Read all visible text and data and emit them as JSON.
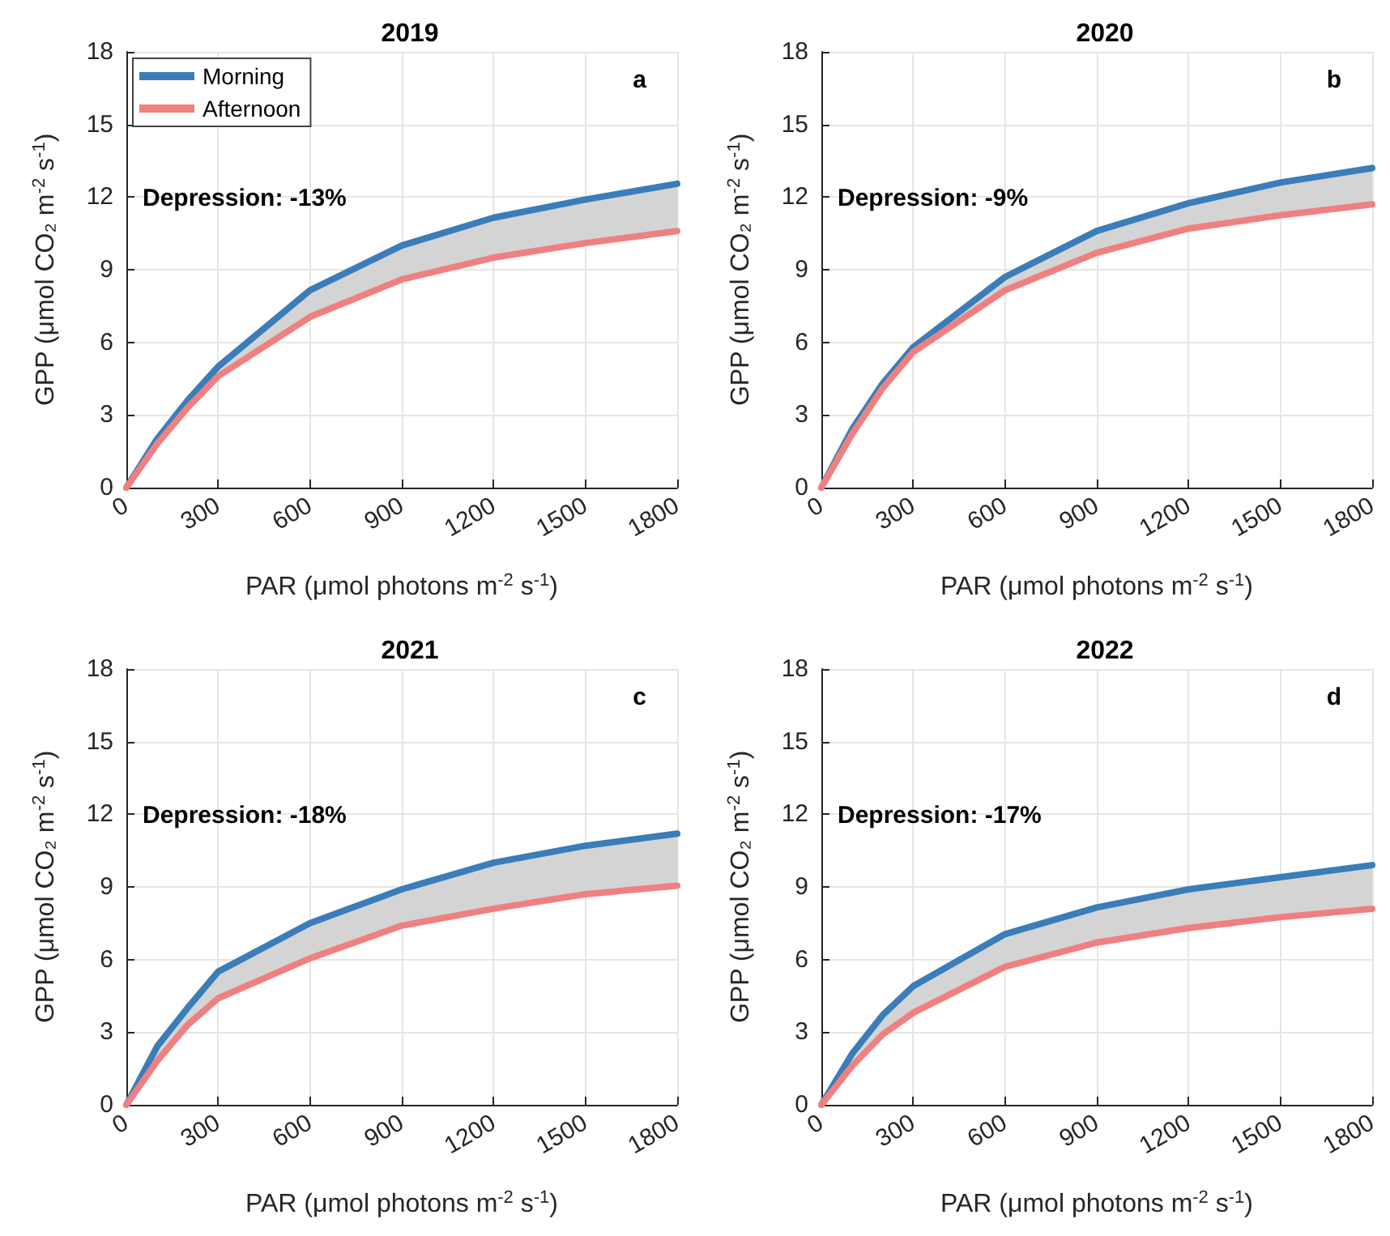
{
  "chart_data": [
    {
      "type": "line",
      "title": "2019",
      "xlabel": "PAR (μmol photons m$^{-2}$ s$^{-1}$)",
      "ylabel": "GPP (μmol CO₂ m$^{-2}$ s$^{-1}$)",
      "annotations": [
        "a",
        "Depression: -13%"
      ],
      "x": [
        0,
        100,
        200,
        300,
        600,
        900,
        1200,
        1500,
        1800
      ],
      "series": [
        {
          "name": "Morning",
          "color": "#3a7db8",
          "values": [
            0,
            2.0,
            3.6,
            5.0,
            8.15,
            10.0,
            11.15,
            11.9,
            12.55
          ],
          "lower": [
            0,
            1.8,
            3.3,
            4.6,
            7.05,
            8.6,
            9.5,
            10.1,
            10.6
          ],
          "upper": [
            0,
            2.0,
            3.6,
            5.0,
            8.15,
            10.0,
            11.15,
            11.9,
            12.55
          ]
        },
        {
          "name": "Afternoon",
          "color": "#f08080",
          "values": [
            0,
            1.8,
            3.3,
            4.6,
            7.05,
            8.6,
            9.5,
            10.1,
            10.6
          ]
        }
      ],
      "xlim": [
        0,
        1800
      ],
      "xticks": [
        0,
        300,
        600,
        900,
        1200,
        1500,
        1800
      ],
      "ylim": [
        0,
        18
      ],
      "yticks": [
        0,
        3,
        6,
        9,
        12,
        15,
        18
      ],
      "grid": true,
      "legend": "top left",
      "line_style": "solid",
      "marker": "none"
    },
    {
      "type": "line",
      "title": "2020",
      "xlabel": "PAR (μmol photons m$^{-2}$ s$^{-1}$)",
      "ylabel": "GPP (μmol CO₂ m$^{-2}$ s$^{-1}$)",
      "annotations": [
        "b",
        "Depression: -9%"
      ],
      "x": [
        0,
        100,
        200,
        300,
        600,
        900,
        1200,
        1500,
        1800
      ],
      "series": [
        {
          "color": "#3a7db8",
          "values": [
            0,
            2.4,
            4.3,
            5.8,
            8.7,
            10.6,
            11.75,
            12.6,
            13.2
          ],
          "lower": [
            0,
            2.2,
            4.1,
            5.6,
            8.15,
            9.7,
            10.7,
            11.25,
            11.7
          ],
          "upper": [
            0,
            2.4,
            4.3,
            5.8,
            8.7,
            10.6,
            11.75,
            12.6,
            13.2
          ]
        },
        {
          "color": "#f08080",
          "values": [
            0,
            2.2,
            4.1,
            5.6,
            8.15,
            9.7,
            10.7,
            11.25,
            11.7
          ]
        }
      ],
      "xlim": [
        0,
        1800
      ],
      "xticks": [
        0,
        300,
        600,
        900,
        1200,
        1500,
        1800
      ],
      "ylim": [
        0,
        18
      ],
      "yticks": [
        0,
        3,
        6,
        9,
        12,
        15,
        18
      ],
      "grid": true,
      "line_style": "solid",
      "marker": "none"
    },
    {
      "type": "line",
      "title": "2021",
      "xlabel": "PAR (μmol photons m$^{-2}$ s$^{-1}$)",
      "ylabel": "GPP (μmol CO₂ m$^{-2}$ s$^{-1}$)",
      "annotations": [
        "c",
        "Depression: -18%"
      ],
      "x": [
        0,
        100,
        200,
        300,
        600,
        900,
        1200,
        1500,
        1800
      ],
      "series": [
        {
          "color": "#3a7db8",
          "values": [
            0,
            2.4,
            4.0,
            5.5,
            7.5,
            8.9,
            10.0,
            10.7,
            11.2
          ],
          "lower": [
            0,
            1.8,
            3.3,
            4.4,
            6.05,
            7.4,
            8.1,
            8.7,
            9.05
          ],
          "upper": [
            0,
            2.4,
            4.0,
            5.5,
            7.5,
            8.9,
            10.0,
            10.7,
            11.2
          ]
        },
        {
          "color": "#f08080",
          "values": [
            0,
            1.8,
            3.3,
            4.4,
            6.05,
            7.4,
            8.1,
            8.7,
            9.05
          ]
        }
      ],
      "xlim": [
        0,
        1800
      ],
      "xticks": [
        0,
        300,
        600,
        900,
        1200,
        1500,
        1800
      ],
      "ylim": [
        0,
        18
      ],
      "yticks": [
        0,
        3,
        6,
        9,
        12,
        15,
        18
      ],
      "grid": true,
      "line_style": "solid",
      "marker": "none"
    },
    {
      "type": "line",
      "title": "2022",
      "xlabel": "PAR (μmol photons m$^{-2}$ s$^{-1}$)",
      "ylabel": "GPP (μmol CO₂ m$^{-2}$ s$^{-1}$)",
      "annotations": [
        "d",
        "Depression: -17%"
      ],
      "x": [
        0,
        100,
        200,
        300,
        600,
        900,
        1200,
        1500,
        1800
      ],
      "series": [
        {
          "color": "#3a7db8",
          "values": [
            0,
            2.1,
            3.7,
            4.9,
            7.05,
            8.15,
            8.9,
            9.4,
            9.9
          ],
          "lower": [
            0,
            1.6,
            2.9,
            3.8,
            5.7,
            6.7,
            7.3,
            7.75,
            8.1
          ],
          "upper": [
            0,
            2.1,
            3.7,
            4.9,
            7.05,
            8.15,
            8.9,
            9.4,
            9.9
          ]
        },
        {
          "color": "#f08080",
          "values": [
            0,
            1.6,
            2.9,
            3.8,
            5.7,
            6.7,
            7.3,
            7.75,
            8.1
          ]
        }
      ],
      "xlim": [
        0,
        1800
      ],
      "xticks": [
        0,
        300,
        600,
        900,
        1200,
        1500,
        1800
      ],
      "ylim": [
        0,
        18
      ],
      "yticks": [
        0,
        3,
        6,
        9,
        12,
        15,
        18
      ],
      "grid": true,
      "line_style": "solid",
      "marker": "none"
    }
  ]
}
